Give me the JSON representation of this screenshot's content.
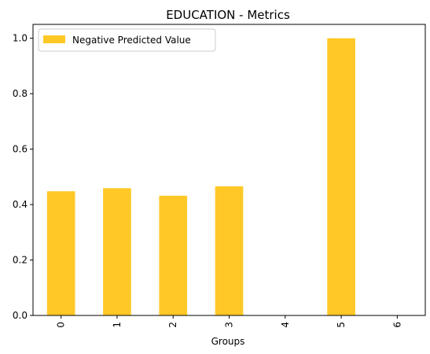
{
  "chart_data": {
    "type": "bar",
    "title": "EDUCATION - Metrics",
    "xlabel": "Groups",
    "ylabel": "",
    "categories": [
      "0",
      "1",
      "2",
      "3",
      "4",
      "5",
      "6"
    ],
    "series": [
      {
        "name": "Negative Predicted Value",
        "values": [
          0.448,
          0.459,
          0.432,
          0.466,
          0.0,
          1.0,
          0.0
        ]
      }
    ],
    "ylim": [
      0,
      1.05
    ],
    "yticks": [
      0.0,
      0.2,
      0.4,
      0.6,
      0.8,
      1.0
    ],
    "ytick_labels": [
      "0.0",
      "0.2",
      "0.4",
      "0.6",
      "0.8",
      "1.0"
    ],
    "grid": false,
    "legend_position": "top-left",
    "bar_color": "#FFC826"
  }
}
